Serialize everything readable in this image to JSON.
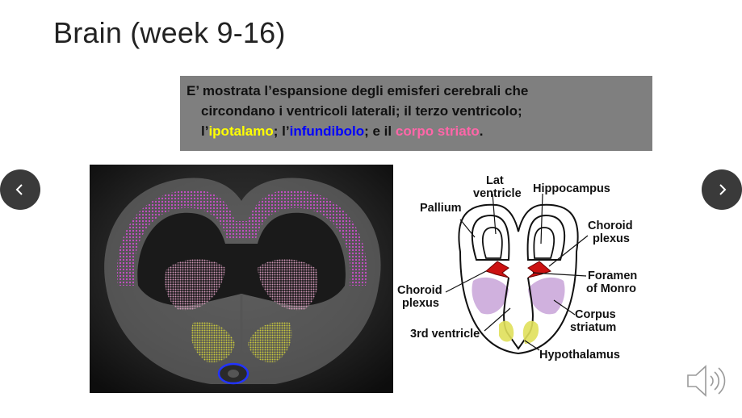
{
  "slide": {
    "title": "Brain (week 9-16)"
  },
  "caption": {
    "line1": "E’ mostrata l’espansione degli emisferi cerebrali che",
    "line2": "circondano i ventricoli laterali; il terzo ventricolo;",
    "line3_part1": "l’",
    "ipotalamo": "ipotalamo",
    "line3_part2": "; l’",
    "infundibolo": "infundibolo",
    "line3_part3": "; e il ",
    "corpo_striato": "corpo striato",
    "line3_end": ".",
    "colors": {
      "ipotalamo": "#ffff00",
      "infundibolo": "#0000ff",
      "corpo_striato": "#ff66a8"
    }
  },
  "nav": {
    "prev_icon": "chevron-left-icon",
    "next_icon": "chevron-right-icon"
  },
  "diagram": {
    "lat_ventricle_1": "Lat",
    "lat_ventricle_2": "ventricle",
    "hippocampus": "Hippocampus",
    "pallium": "Pallium",
    "choroid_plexus_r_1": "Choroid",
    "choroid_plexus_r_2": "plexus",
    "foramen_1": "Foramen",
    "foramen_2": "of Monro",
    "choroid_plexus_l_1": "Choroid",
    "choroid_plexus_l_2": "plexus",
    "corpus_1": "Corpus",
    "corpus_2": "striatum",
    "third_ventricle": "3rd ventricle",
    "hypothalamus": "Hypothalamus"
  },
  "audio": {
    "icon": "speaker-icon"
  }
}
